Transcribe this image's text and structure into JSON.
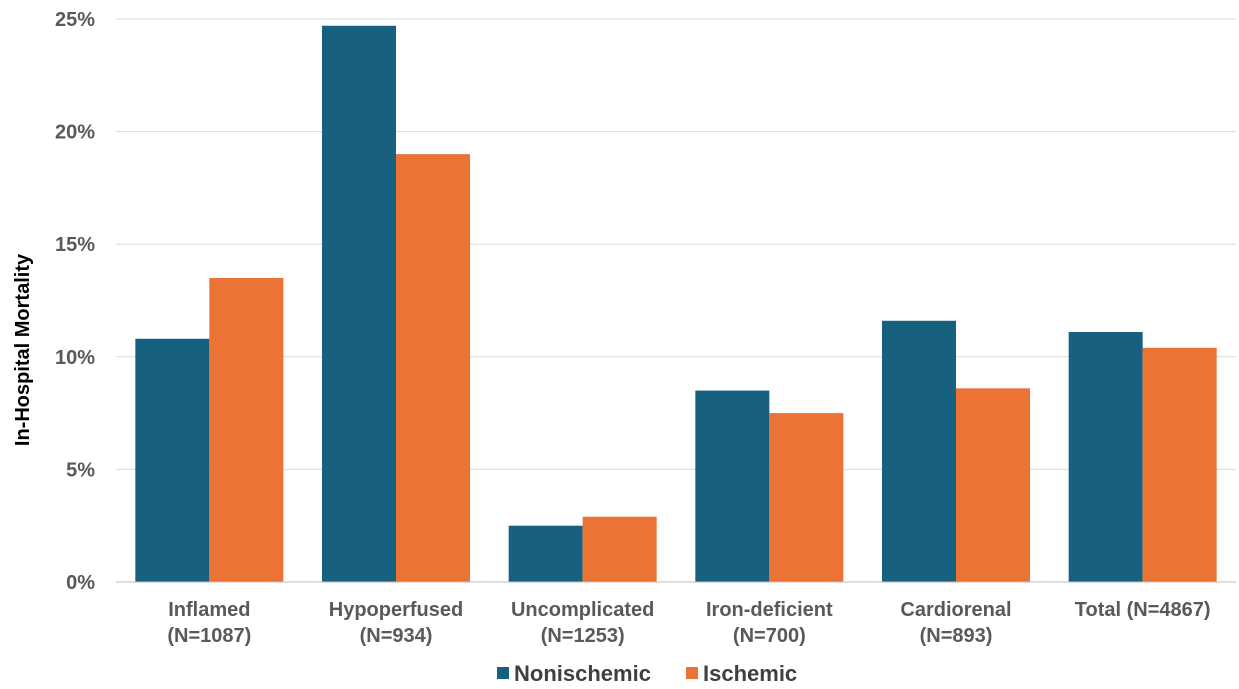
{
  "chart_data": {
    "type": "bar",
    "title": "",
    "xlabel": "",
    "ylabel": "In-Hospital Mortality",
    "ylim": [
      0,
      25
    ],
    "yticks": [
      "0%",
      "5%",
      "10%",
      "15%",
      "20%",
      "25%"
    ],
    "ytick_values": [
      0,
      5,
      10,
      15,
      20,
      25
    ],
    "grid": true,
    "legend_position": "bottom",
    "categories": [
      {
        "line1": "Inflamed",
        "line2": "(N=1087)"
      },
      {
        "line1": "Hypoperfused",
        "line2": "(N=934)"
      },
      {
        "line1": "Uncomplicated",
        "line2": "(N=1253)"
      },
      {
        "line1": "Iron-deficient",
        "line2": "(N=700)"
      },
      {
        "line1": "Cardiorenal",
        "line2": "(N=893)"
      },
      {
        "line1": "Total (N=4867)",
        "line2": ""
      }
    ],
    "series": [
      {
        "name": "Nonischemic",
        "color": "#17607F",
        "values": [
          10.8,
          24.7,
          2.5,
          8.5,
          11.6,
          11.1
        ]
      },
      {
        "name": "Ischemic",
        "color": "#EB7335",
        "values": [
          13.5,
          19.0,
          2.9,
          7.5,
          8.6,
          10.4
        ]
      }
    ]
  }
}
